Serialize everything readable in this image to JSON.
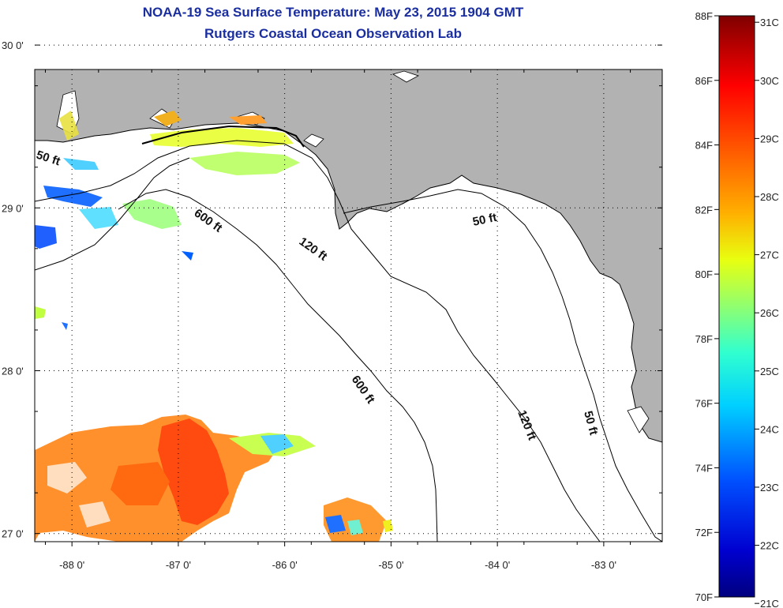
{
  "title": "NOAA-19 Sea Surface Temperature:  May 23, 2015 1904 GMT",
  "subtitle": "Rutgers Coastal Ocean Observation Lab",
  "map": {
    "lon_range": [
      -88.35,
      -82.45
    ],
    "lat_range": [
      26.95,
      29.85
    ],
    "lon_ticks": [
      {
        "value": -88,
        "label": "-88 0'"
      },
      {
        "value": -87,
        "label": "-87 0'"
      },
      {
        "value": -86,
        "label": "-86 0'"
      },
      {
        "value": -85,
        "label": "-85 0'"
      },
      {
        "value": -84,
        "label": "-84 0'"
      },
      {
        "value": -83,
        "label": "-83 0'"
      }
    ],
    "lat_ticks": [
      {
        "value": 30,
        "label": "30 0'"
      },
      {
        "value": 29,
        "label": "29 0'"
      },
      {
        "value": 28,
        "label": "28 0'"
      },
      {
        "value": 27,
        "label": "27 0'"
      }
    ],
    "land_color": "#b2b2b2",
    "ocean_color": "#ffffff",
    "contour_labels": [
      "50 ft",
      "600 ft",
      "120 ft",
      "50 ft",
      "600 ft",
      "120 ft",
      "50 ft"
    ]
  },
  "colorbar": {
    "colors": [
      "#00007f",
      "#0000c8",
      "#0010ff",
      "#0060ff",
      "#00b0ff",
      "#10f0e8",
      "#60ffa0",
      "#b0ff50",
      "#f0f000",
      "#ffb000",
      "#ff6000",
      "#ff1000",
      "#c00000",
      "#7f0000"
    ],
    "f_labels": [
      "88F",
      "86F",
      "84F",
      "82F",
      "80F",
      "78F",
      "76F",
      "74F",
      "72F",
      "70F"
    ],
    "c_labels": [
      "31C",
      "30C",
      "29C",
      "28C",
      "27C",
      "26C",
      "25C",
      "24C",
      "23C",
      "22C",
      "21C"
    ]
  }
}
